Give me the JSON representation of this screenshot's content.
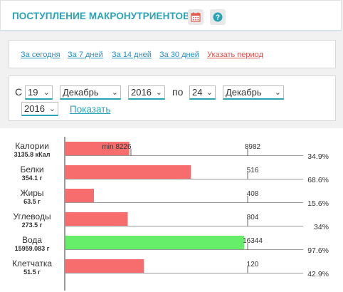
{
  "header": {
    "title": "ПОСТУПЛЕНИЕ МАКРОНУТРИЕНТОВ",
    "icons": [
      "calendar-icon",
      "help-icon"
    ]
  },
  "period_links": [
    "За сегодня",
    "За 7 дней",
    "За 14 дней",
    "За 30 дней",
    "Указать период"
  ],
  "range": {
    "from_label": "С",
    "to_label": "по",
    "from_day": "19",
    "from_month": "Декабрь",
    "from_year": "2016",
    "to_day": "24",
    "to_month": "Декабрь",
    "to_year": "2016",
    "show_label": "Показать"
  },
  "colors": {
    "accent": "#2aa3b6",
    "bar_red": "#f76d6d",
    "bar_green": "#66ee6a"
  },
  "chart_data": {
    "type": "bar",
    "rows": [
      {
        "name": "Калории",
        "amount": "3135.8 кКал",
        "value": 3135.8,
        "target": 8982,
        "min_label": "min 8226",
        "percent": "34.9%"
      },
      {
        "name": "Белки",
        "amount": "354.1 г",
        "value": 354.1,
        "target": 516,
        "percent": "68.6%"
      },
      {
        "name": "Жиры",
        "amount": "63.5 г",
        "value": 63.5,
        "target": 408,
        "percent": "15.6%"
      },
      {
        "name": "Углеводы",
        "amount": "273.5 г",
        "value": 273.5,
        "target": 804,
        "percent": "34%"
      },
      {
        "name": "Вода",
        "amount": "15959.083 г",
        "value": 15959.083,
        "target": 16344,
        "percent": "97.6%",
        "color": "green"
      },
      {
        "name": "Клетчатка",
        "amount": "51.5 г",
        "value": 51.5,
        "target": 120,
        "percent": "42.9%"
      }
    ]
  }
}
